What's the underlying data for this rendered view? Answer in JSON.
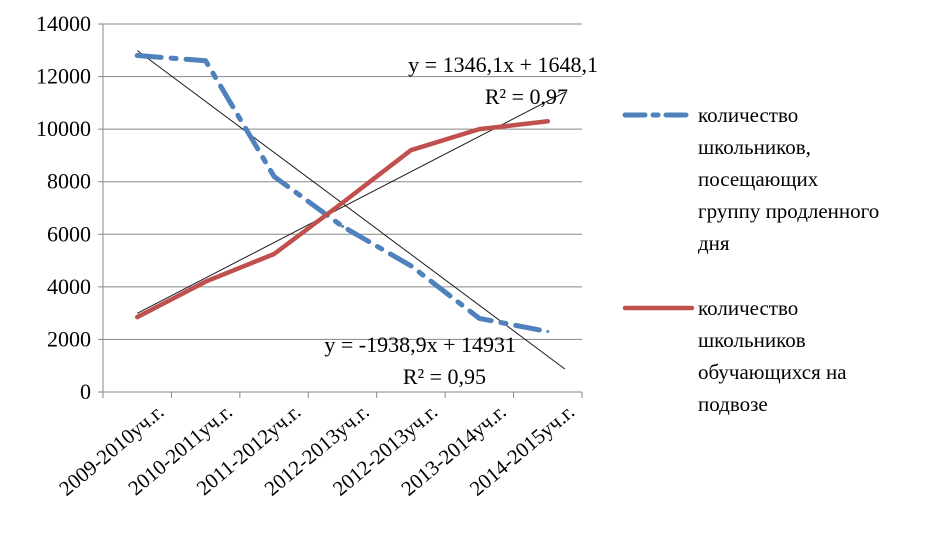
{
  "chart_data": {
    "type": "line",
    "categories": [
      "2009-2010уч.г.",
      "2010-2011уч.г.",
      "2011-2012уч.г.",
      "2012-2013уч.г.",
      "2012-2013уч.г.",
      "2013-2014уч.г.",
      "2014-2015уч.г."
    ],
    "ylim": [
      0,
      14000
    ],
    "yticks": [
      0,
      2000,
      4000,
      6000,
      8000,
      10000,
      12000,
      14000
    ],
    "grid": true,
    "legend_position": "right",
    "series": [
      {
        "name": "количество школьников, посещающих группу продленного дня",
        "legend_lines": [
          "количество",
          "школьников,",
          "посещающих",
          "группу продленного",
          "дня"
        ],
        "color": "#4f81bd",
        "style": "dash-dot",
        "values": [
          12800,
          12600,
          8200,
          6300,
          4800,
          2800,
          2300
        ]
      },
      {
        "name": "количество школьников обучающихся на подвозе",
        "legend_lines": [
          "количество",
          "школьников",
          "обучающихся на",
          "подвозе"
        ],
        "color": "#c0504d",
        "style": "solid",
        "values": [
          2850,
          4200,
          5250,
          7200,
          9200,
          10000,
          10300
        ]
      }
    ],
    "trendlines": [
      {
        "series_index": 1,
        "slope": 1346.1,
        "intercept": 1648.1,
        "equation": "y = 1346,1x + 1648,1",
        "r2": "R² = 0,97"
      },
      {
        "series_index": 0,
        "slope": -1938.9,
        "intercept": 14931,
        "equation": "y = -1938,9x + 14931",
        "r2": "R² = 0,95"
      }
    ]
  }
}
